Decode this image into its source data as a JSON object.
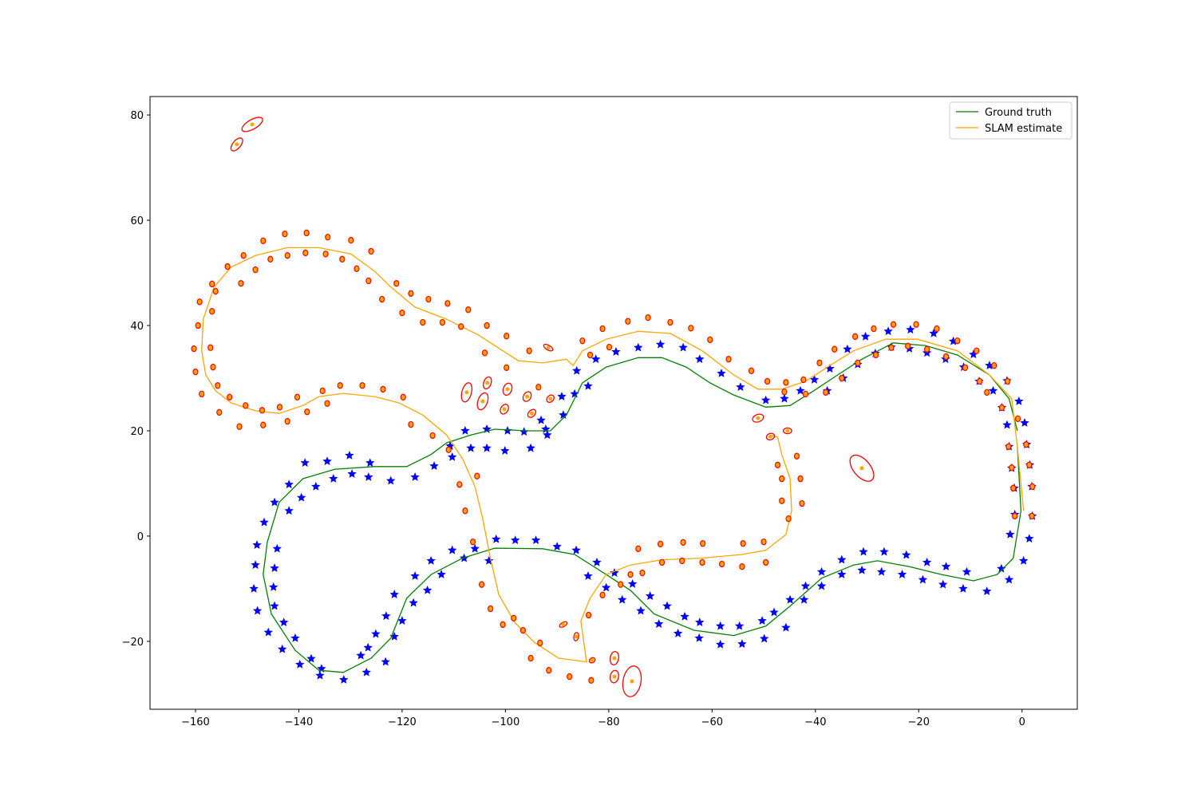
{
  "chart_data": {
    "type": "slam",
    "xlim": [
      -168.8,
      10.7
    ],
    "ylim": [
      -32.9,
      83.5
    ],
    "xticks": [
      {
        "value": -160,
        "label": "−160"
      },
      {
        "value": -140,
        "label": "−140"
      },
      {
        "value": -120,
        "label": "−120"
      },
      {
        "value": -100,
        "label": "−100"
      },
      {
        "value": -80,
        "label": "−80"
      },
      {
        "value": -60,
        "label": "−60"
      },
      {
        "value": -40,
        "label": "−40"
      },
      {
        "value": -20,
        "label": "−20"
      },
      0
    ],
    "yticks": [
      {
        "value": -20,
        "label": "−20"
      },
      0,
      20,
      40,
      60,
      80
    ],
    "legend": "upper right",
    "series": [
      {
        "name": "Ground truth",
        "color": "green",
        "x": [
          -0.9,
          -0.2,
          -1.7,
          -4.8,
          -9.4,
          -15.6,
          -21.8,
          -28.0,
          -32.6,
          -38.8,
          -44.9,
          -49.6,
          -55.8,
          -63.5,
          -71.2,
          -75.8,
          -80.5,
          -86.6,
          -92.8,
          -102.1,
          -108.3,
          -114.4,
          -119.1,
          -122.2,
          -126.0,
          -131.4,
          -136.1,
          -140.7,
          -145.3,
          -146.9,
          -146.1,
          -143.8,
          -139.2,
          -133.0,
          -125.3,
          -119.1,
          -114.4,
          -111.4,
          -106.7,
          -102.1,
          -95.9,
          -91.3,
          -88.2,
          -85.1,
          -80.5,
          -74.3,
          -69.7,
          -65.0,
          -60.4,
          -55.8,
          -49.6,
          -44.9,
          -40.3,
          -35.7,
          -31.0,
          -24.9,
          -18.7,
          -12.5,
          -6.3,
          -2.5,
          -0.9
        ],
        "y": [
          17.0,
          4.8,
          -4.2,
          -7.3,
          -8.5,
          -7.3,
          -5.8,
          -4.7,
          -5.5,
          -8.0,
          -13.3,
          -17.1,
          -18.9,
          -17.9,
          -14.8,
          -10.3,
          -7.3,
          -3.5,
          -2.4,
          -2.3,
          -4.2,
          -7.3,
          -11.8,
          -19.4,
          -23.2,
          -25.9,
          -25.5,
          -21.7,
          -14.8,
          -7.3,
          -1.2,
          6.4,
          10.9,
          12.7,
          13.2,
          13.2,
          15.5,
          17.7,
          19.2,
          20.3,
          20.0,
          20.0,
          23.0,
          29.1,
          32.1,
          33.9,
          33.9,
          32.1,
          29.1,
          26.8,
          24.5,
          24.8,
          27.6,
          30.6,
          33.6,
          36.7,
          36.2,
          34.4,
          30.6,
          26.1,
          20.0
        ]
      },
      {
        "name": "SLAM estimate",
        "color": "orange",
        "x": [
          0.3,
          -0.9,
          -2.0,
          -6.3,
          -12.5,
          -20.2,
          -26.4,
          -32.6,
          -37.2,
          -41.9,
          -46.5,
          -51.1,
          -55.8,
          -61.9,
          -68.1,
          -74.3,
          -80.5,
          -85.1,
          -86.9,
          -88.2,
          -92.8,
          -97.5,
          -100.5,
          -105.2,
          -111.4,
          -117.5,
          -122.2,
          -125.3,
          -129.9,
          -136.1,
          -142.2,
          -148.4,
          -153.1,
          -156.4,
          -158.5,
          -158.8,
          -158.0,
          -156.1,
          -153.1,
          -148.4,
          -143.8,
          -139.2,
          -136.1,
          -131.4,
          -125.3,
          -120.6,
          -116.0,
          -111.4,
          -108.3,
          -105.9,
          -104.4,
          -102.9,
          -101.3,
          -98.2,
          -94.4,
          -89.7,
          -84.3,
          -85.4,
          -83.6,
          -80.5,
          -75.8,
          -69.7,
          -61.9,
          -54.2,
          -49.6,
          -45.7,
          -44.6,
          -44.9,
          -46.5,
          -47.3,
          -48.8
        ],
        "y": [
          4.8,
          17.0,
          26.1,
          30.6,
          35.2,
          37.4,
          37.4,
          35.2,
          32.4,
          29.4,
          27.9,
          27.9,
          30.6,
          35.2,
          38.5,
          38.9,
          37.4,
          35.2,
          32.4,
          33.6,
          32.9,
          33.3,
          35.2,
          38.2,
          41.2,
          43.5,
          47.3,
          50.3,
          53.6,
          54.8,
          54.8,
          53.3,
          51.1,
          47.3,
          41.2,
          35.2,
          30.6,
          27.6,
          25.3,
          23.8,
          23.3,
          24.8,
          26.5,
          27.1,
          26.5,
          25.3,
          23.0,
          19.2,
          14.7,
          9.4,
          3.3,
          -4.2,
          -11.1,
          -16.4,
          -20.2,
          -23.2,
          -23.9,
          -16.1,
          -11.8,
          -7.3,
          -5.5,
          -4.5,
          -4.2,
          -3.5,
          -2.7,
          0.3,
          4.8,
          10.9,
          15.5,
          18.8,
          19.2
        ]
      }
    ],
    "landmarks": {
      "color": "blue",
      "x": [
        -33.8,
        -30.3,
        -25.9,
        -21.6,
        -17.1,
        -13.3,
        -9.4,
        -6.3,
        -2.9,
        -0.6,
        0.5,
        0.9,
        1.5,
        1.9,
        2.0,
        1.4,
        0.3,
        -37.7,
        -34.6,
        -31.8,
        -28.4,
        -25.3,
        -21.8,
        -18.4,
        -14.8,
        -11.3,
        -8.3,
        -5.6,
        -3.9,
        -2.9,
        -2.5,
        -2.0,
        -1.5,
        -1.4,
        -2.3,
        -2.5,
        -6.8,
        -11.4,
        -15.3,
        -19.2,
        -23.2,
        -27.2,
        -31.0,
        -34.9,
        -38.8,
        -42.2,
        -45.7,
        -49.9,
        -54.2,
        -58.4,
        -62.5,
        -66.6,
        -70.3,
        -73.8,
        -77.4,
        -80.5,
        -84.0,
        -4.0,
        -10.7,
        -14.7,
        -18.4,
        -22.4,
        -26.7,
        -30.7,
        -34.9,
        -38.8,
        -41.9,
        -44.9,
        -48.0,
        -50.3,
        -54.7,
        -58.4,
        -62.4,
        -65.3,
        -68.7,
        -72.0,
        -75.4,
        -78.9,
        -82.3,
        -86.3,
        -90.0,
        -94.1,
        -98.1,
        -101.8,
        -105.9,
        -110.3,
        -114.4,
        -117.5,
        -121.5,
        -123.1,
        -125.1,
        -126.6,
        -128.0,
        -131.3,
        -135.9,
        -139.8,
        -143.2,
        -145.9,
        -148.0,
        -148.7,
        -148.4,
        -148.1,
        -146.7,
        -144.7,
        -141.9,
        -138.8,
        -134.5,
        -130.2,
        -126.2,
        -122.2,
        -117.5,
        -113.8,
        -110.7,
        -107.8,
        -103.6,
        -99.6,
        -96.4,
        -92.2,
        -88.8,
        -86.6,
        -84.0,
        -82.5,
        -78.6,
        -74.3,
        -70.0,
        -65.6,
        -62.4,
        -58.2,
        -54.5,
        -49.6,
        -46.0,
        -42.9,
        -40.2,
        -37.2,
        -103.2,
        -108.0,
        -112.4,
        -115.1,
        -117.8,
        -120.0,
        -121.5,
        -123.2,
        -126.9,
        -135.6,
        -137.6,
        -140.7,
        -142.9,
        -144.7,
        -144.9,
        -144.7,
        -144.2,
        -141.9,
        -139.5,
        -136.7,
        -133.3,
        -129.7,
        -126.5,
        -110.3,
        -106.7,
        -103.6,
        -100.1,
        -95.1,
        -91.9,
        -93.1,
        -89.1,
        -86.2
      ],
      "y": [
        35.5,
        37.9,
        38.9,
        39.2,
        38.5,
        37.0,
        34.5,
        32.4,
        29.5,
        25.6,
        21.5,
        17.4,
        13.5,
        9.4,
        3.8,
        -0.5,
        -4.7,
        27.6,
        30.0,
        32.6,
        34.7,
        35.9,
        35.6,
        34.8,
        33.6,
        32.1,
        29.4,
        27.6,
        24.4,
        21.1,
        17.0,
        12.9,
        9.1,
        4.1,
        0.3,
        -8.3,
        -10.5,
        -10.0,
        -9.2,
        -8.3,
        -7.3,
        -6.8,
        -6.5,
        -7.3,
        -9.5,
        -12.1,
        -17.4,
        -19.5,
        -20.5,
        -20.6,
        -19.4,
        -18.5,
        -16.7,
        -14.2,
        -12.1,
        -9.8,
        -7.6,
        -6.2,
        -6.8,
        -5.8,
        -5.0,
        -3.6,
        -3.0,
        -3.0,
        -4.5,
        -6.8,
        -9.5,
        -12.1,
        -14.5,
        -16.1,
        -17.1,
        -17.1,
        -16.4,
        -15.3,
        -13.3,
        -11.4,
        -9.1,
        -7.0,
        -5.0,
        -2.7,
        -2.0,
        -0.8,
        -0.8,
        -0.6,
        -2.4,
        -2.7,
        -4.7,
        -7.6,
        -11.1,
        -15.2,
        -18.6,
        -21.2,
        -22.7,
        -27.3,
        -26.5,
        -24.4,
        -21.5,
        -18.3,
        -14.2,
        -10.0,
        -5.5,
        -1.7,
        2.6,
        6.4,
        9.8,
        13.9,
        14.2,
        15.3,
        13.9,
        10.5,
        11.2,
        13.3,
        17.1,
        20.0,
        20.3,
        20.0,
        19.8,
        20.3,
        23.0,
        27.0,
        28.5,
        33.6,
        35.0,
        35.8,
        36.4,
        35.8,
        33.6,
        30.9,
        28.3,
        25.8,
        26.1,
        27.6,
        29.7,
        31.8,
        -4.7,
        -4.2,
        -7.3,
        -10.3,
        -12.7,
        -16.1,
        -19.1,
        -23.9,
        -25.9,
        -25.2,
        -23.3,
        -19.4,
        -16.4,
        -13.3,
        -9.7,
        -6.1,
        -2.4,
        4.8,
        7.3,
        9.4,
        10.9,
        11.8,
        11.2,
        15.0,
        16.7,
        16.7,
        16.2,
        16.7,
        19.2,
        22.0,
        26.5,
        31.4
      ]
    },
    "estimated_landmarks": {
      "color": "orange",
      "edge_color": "red",
      "x": [
        -160.3,
        -160.0,
        -158.8,
        -155.4,
        -151.5,
        -146.9,
        -142.2,
        -138.4,
        -134.5,
        -132.0,
        -127.7,
        -123.7,
        -119.8,
        -118.3,
        -114.1,
        -111.0,
        -108.9,
        -107.8,
        -106.3,
        -104.6,
        -102.9,
        -100.5,
        -95.1,
        -91.6,
        -87.6,
        -83.4,
        -159.5,
        -159.2,
        -156.8,
        -153.8,
        -150.7,
        -146.9,
        -142.7,
        -138.5,
        -134.4,
        -129.9,
        -126.0,
        -121.1,
        -118.3,
        -114.9,
        -111.2,
        -107.2,
        -103.6,
        -99.8,
        -95.4,
        -156.8,
        -157.1,
        -156.6,
        -155.7,
        -153.4,
        -150.3,
        -147.1,
        -143.7,
        -140.3,
        -135.4,
        -156.1,
        -151.2,
        -148.4,
        -145.5,
        -142.2,
        -138.7,
        -134.8,
        -131.6,
        -128.8,
        -126.5,
        -123.9,
        -120.0,
        -116.0,
        -112.2,
        -108.6,
        -104.0,
        -99.8,
        -93.6,
        -85.1,
        -83.6,
        -81.2,
        -79.9,
        -76.3,
        -72.4,
        -68.1,
        -64.1,
        -60.4,
        -56.8,
        -52.4,
        -49.3,
        -45.7,
        -42.3,
        -39.2,
        -36.3,
        -32.3,
        -28.7,
        -24.9,
        -20.5,
        -16.5,
        -12.5,
        -8.8,
        -5.4,
        -2.8,
        -0.8,
        0.8,
        1.4,
        2.0,
        1.9,
        -1.4,
        -1.7,
        -2.0,
        -2.6,
        -3.9,
        -6.8,
        -8.2,
        -11.0,
        -14.7,
        -18.4,
        -22.1,
        -25.3,
        -28.3,
        -31.8,
        -34.9,
        -38.0,
        -41.9,
        -46.0,
        -42.9,
        -42.6,
        -46.5,
        -46.5,
        -47.3,
        -43.6,
        -45.2,
        -49.6,
        -54.2,
        -58.1,
        -61.9,
        -65.8,
        -69.7,
        -73.5,
        -75.8,
        -77.7,
        -81.2,
        -83.9,
        -54.0,
        -50.0,
        -61.8,
        -65.6,
        -70.0,
        -74.3,
        -98.4,
        -96.6,
        -93.3,
        -105.5
      ],
      "y": [
        35.6,
        31.2,
        27.0,
        23.5,
        20.8,
        21.1,
        21.8,
        23.6,
        25.2,
        28.6,
        28.6,
        27.9,
        26.4,
        21.2,
        19.1,
        16.4,
        9.8,
        4.8,
        -1.1,
        -9.2,
        -13.8,
        -16.8,
        -23.2,
        -25.5,
        -26.7,
        -27.4,
        40.0,
        44.5,
        47.9,
        51.2,
        53.3,
        56.1,
        57.4,
        57.6,
        56.8,
        56.2,
        54.1,
        48.0,
        46.1,
        45.0,
        44.2,
        43.0,
        40.0,
        38.0,
        35.2,
        42.7,
        35.8,
        32.1,
        28.6,
        26.4,
        24.8,
        23.9,
        24.5,
        26.4,
        27.6,
        46.5,
        48.0,
        50.6,
        52.6,
        53.3,
        53.8,
        53.6,
        52.6,
        50.8,
        48.5,
        45.0,
        42.4,
        40.6,
        40.6,
        39.8,
        34.8,
        32.0,
        28.3,
        37.1,
        34.4,
        39.4,
        35.9,
        40.8,
        41.5,
        40.6,
        39.5,
        37.3,
        33.6,
        31.4,
        29.4,
        29.2,
        29.7,
        32.9,
        35.5,
        37.9,
        39.4,
        40.2,
        40.2,
        39.4,
        37.1,
        35.2,
        32.4,
        29.4,
        22.3,
        17.4,
        13.5,
        9.4,
        3.8,
        3.8,
        9.1,
        13.0,
        17.0,
        24.4,
        27.3,
        29.4,
        32.0,
        34.1,
        35.5,
        36.1,
        35.8,
        34.4,
        32.9,
        30.0,
        27.3,
        27.0,
        27.4,
        10.9,
        6.2,
        6.7,
        10.9,
        13.5,
        15.2,
        3.3,
        -5.0,
        -5.8,
        -5.3,
        -5.0,
        -4.7,
        -5.0,
        -7.0,
        -7.3,
        -9.2,
        -11.2,
        -15.0,
        -1.4,
        -1.1,
        -1.4,
        -1.2,
        -1.5,
        -2.4,
        -15.6,
        -17.9,
        -20.3,
        11.4
      ]
    },
    "uncertainty": {
      "color": "red",
      "center_color": "orange",
      "x": [
        -149.0,
        -152.0,
        -31.0,
        -75.5,
        -78.9,
        -78.9,
        -107.5,
        -104.4,
        -103.5,
        -99.6,
        -100.2,
        -95.8,
        -94.9,
        -51.1,
        -48.7,
        -45.4,
        -91.7,
        -91.3,
        -88.8,
        -86.3,
        -83.2
      ],
      "y": [
        78.2,
        74.4,
        12.9,
        -27.6,
        -23.2,
        -26.7,
        27.3,
        25.6,
        29.1,
        27.9,
        24.1,
        26.5,
        23.3,
        22.4,
        18.9,
        20.0,
        35.8,
        26.1,
        -16.8,
        -19.1,
        -23.6
      ],
      "width": [
        4.5,
        3.0,
        6.0,
        6.0,
        2.6,
        2.4,
        3.8,
        3.4,
        2.4,
        2.4,
        2.0,
        2.0,
        1.8,
        2.2,
        1.6,
        1.6,
        2.0,
        1.6,
        1.6,
        1.6,
        1.2
      ],
      "height": [
        1.8,
        1.5,
        3.2,
        3.4,
        1.6,
        1.6,
        1.8,
        1.8,
        1.4,
        1.6,
        1.4,
        1.4,
        1.2,
        1.4,
        1.2,
        1.1,
        0.9,
        1.2,
        0.8,
        0.9,
        0.9
      ],
      "angle": [
        30,
        50,
        -50,
        80,
        80,
        80,
        75,
        70,
        70,
        70,
        60,
        60,
        45,
        20,
        20,
        0,
        -30,
        45,
        30,
        80,
        30
      ]
    }
  }
}
